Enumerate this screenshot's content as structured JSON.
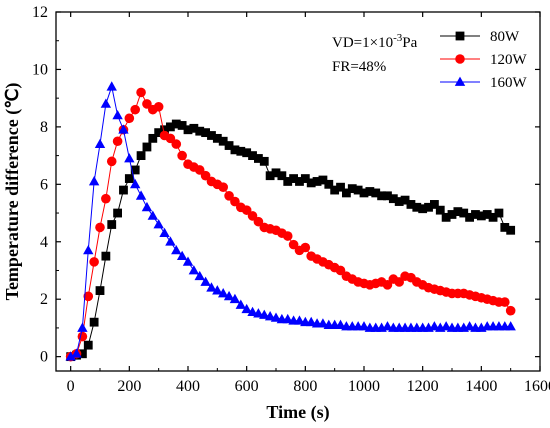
{
  "chart_data": {
    "type": "line",
    "xlabel": "Time (s)",
    "ylabel": "Temperature difference (℃)",
    "xlim": [
      -50,
      1600
    ],
    "ylim": [
      -0.5,
      12
    ],
    "xticks": [
      0,
      200,
      400,
      600,
      800,
      1000,
      1200,
      1400,
      1600
    ],
    "yticks": [
      0,
      2,
      4,
      6,
      8,
      10,
      12
    ],
    "annotations": {
      "vd_prefix": "VD=1×10",
      "vd_exp": "-3",
      "vd_unit": "Pa",
      "fr": "FR=48%"
    },
    "legend_position": "top-right",
    "series": [
      {
        "name": "80W",
        "marker": "square",
        "color": "#000000",
        "x": [
          0,
          20,
          40,
          60,
          80,
          100,
          120,
          140,
          160,
          180,
          200,
          220,
          240,
          260,
          280,
          300,
          320,
          340,
          360,
          380,
          400,
          420,
          440,
          460,
          480,
          500,
          520,
          540,
          560,
          580,
          600,
          620,
          640,
          660,
          680,
          700,
          720,
          740,
          760,
          780,
          800,
          820,
          840,
          860,
          880,
          900,
          920,
          940,
          960,
          980,
          1000,
          1020,
          1040,
          1060,
          1080,
          1100,
          1120,
          1140,
          1160,
          1180,
          1200,
          1220,
          1240,
          1260,
          1280,
          1300,
          1320,
          1340,
          1360,
          1380,
          1400,
          1420,
          1440,
          1460,
          1480,
          1500
        ],
        "y": [
          0,
          0.05,
          0.1,
          0.4,
          1.2,
          2.3,
          3.5,
          4.6,
          5.0,
          5.8,
          6.2,
          6.5,
          7.0,
          7.3,
          7.6,
          7.8,
          7.9,
          8.0,
          8.1,
          8.05,
          7.9,
          7.95,
          7.85,
          7.8,
          7.7,
          7.6,
          7.5,
          7.35,
          7.2,
          7.15,
          7.1,
          7.0,
          6.9,
          6.8,
          6.3,
          6.4,
          6.3,
          6.1,
          6.2,
          6.1,
          6.2,
          6.05,
          6.1,
          6.15,
          6.0,
          5.8,
          5.9,
          5.7,
          5.85,
          5.8,
          5.7,
          5.75,
          5.7,
          5.6,
          5.6,
          5.5,
          5.4,
          5.45,
          5.3,
          5.2,
          5.15,
          5.2,
          5.3,
          5.1,
          4.85,
          4.95,
          5.05,
          5.0,
          4.85,
          4.95,
          4.9,
          4.95,
          4.85,
          5.0,
          4.5,
          4.4
        ]
      },
      {
        "name": "120W",
        "marker": "circle",
        "color": "#ff0000",
        "x": [
          0,
          20,
          40,
          60,
          80,
          100,
          120,
          140,
          160,
          180,
          200,
          220,
          240,
          260,
          280,
          300,
          320,
          340,
          360,
          380,
          400,
          420,
          440,
          460,
          480,
          500,
          520,
          540,
          560,
          580,
          600,
          620,
          640,
          660,
          680,
          700,
          720,
          740,
          760,
          780,
          800,
          820,
          840,
          860,
          880,
          900,
          920,
          940,
          960,
          980,
          1000,
          1020,
          1040,
          1060,
          1080,
          1100,
          1120,
          1140,
          1160,
          1180,
          1200,
          1220,
          1240,
          1260,
          1280,
          1300,
          1320,
          1340,
          1360,
          1380,
          1400,
          1420,
          1440,
          1460,
          1480,
          1500
        ],
        "y": [
          0,
          0.1,
          0.7,
          2.1,
          3.3,
          4.5,
          5.5,
          6.8,
          7.5,
          7.9,
          8.3,
          8.6,
          9.2,
          8.8,
          8.6,
          8.7,
          7.7,
          7.6,
          7.4,
          7.0,
          6.7,
          6.6,
          6.5,
          6.3,
          6.1,
          6.0,
          5.9,
          5.6,
          5.4,
          5.2,
          5.1,
          4.9,
          4.7,
          4.5,
          4.45,
          4.4,
          4.3,
          4.2,
          3.9,
          3.7,
          3.8,
          3.5,
          3.4,
          3.3,
          3.2,
          3.1,
          3.0,
          2.8,
          2.7,
          2.6,
          2.55,
          2.5,
          2.55,
          2.6,
          2.5,
          2.7,
          2.6,
          2.8,
          2.75,
          2.6,
          2.5,
          2.4,
          2.35,
          2.3,
          2.25,
          2.2,
          2.2,
          2.2,
          2.15,
          2.1,
          2.05,
          2.0,
          1.95,
          1.9,
          1.9,
          1.6
        ]
      },
      {
        "name": "160W",
        "marker": "triangle",
        "color": "#0000ff",
        "x": [
          0,
          20,
          40,
          60,
          80,
          100,
          120,
          140,
          160,
          180,
          200,
          220,
          240,
          260,
          280,
          300,
          320,
          340,
          360,
          380,
          400,
          420,
          440,
          460,
          480,
          500,
          520,
          540,
          560,
          580,
          600,
          620,
          640,
          660,
          680,
          700,
          720,
          740,
          760,
          780,
          800,
          820,
          840,
          860,
          880,
          900,
          920,
          940,
          960,
          980,
          1000,
          1020,
          1040,
          1060,
          1080,
          1100,
          1120,
          1140,
          1160,
          1180,
          1200,
          1220,
          1240,
          1260,
          1280,
          1300,
          1320,
          1340,
          1360,
          1380,
          1400,
          1420,
          1440,
          1460,
          1480,
          1500
        ],
        "y": [
          0,
          0.1,
          1.0,
          3.7,
          6.1,
          7.4,
          8.8,
          9.4,
          8.4,
          7.9,
          6.9,
          6.0,
          5.6,
          5.2,
          4.9,
          4.6,
          4.3,
          4.0,
          3.7,
          3.5,
          3.3,
          3.0,
          2.8,
          2.6,
          2.4,
          2.3,
          2.2,
          2.1,
          2.0,
          1.8,
          1.65,
          1.55,
          1.5,
          1.45,
          1.4,
          1.35,
          1.3,
          1.3,
          1.25,
          1.25,
          1.2,
          1.2,
          1.15,
          1.15,
          1.1,
          1.1,
          1.1,
          1.05,
          1.05,
          1.05,
          1.05,
          1.0,
          1.0,
          1.0,
          1.05,
          1.0,
          1.0,
          1.0,
          1.0,
          1.0,
          1.0,
          1.0,
          1.05,
          1.0,
          1.05,
          1.0,
          1.0,
          1.0,
          1.05,
          1.0,
          1.0,
          1.05,
          1.05,
          1.05,
          1.05,
          1.05
        ]
      }
    ]
  }
}
